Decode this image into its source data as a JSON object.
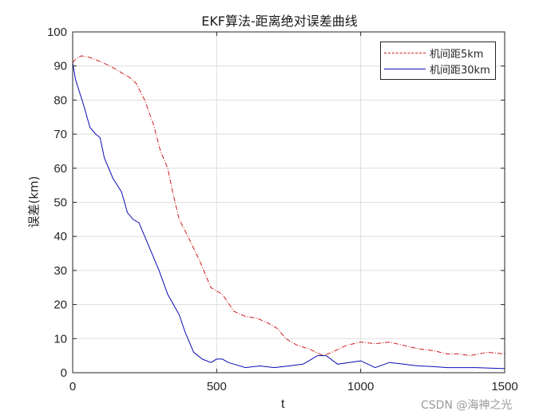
{
  "chart_data": {
    "type": "line",
    "title": "EKF算法-距离绝对误差曲线",
    "xlabel": "t",
    "ylabel": "误差(km)",
    "xlim": [
      0,
      1500
    ],
    "ylim": [
      0,
      100
    ],
    "xticks": [
      0,
      500,
      1000,
      1500
    ],
    "yticks": [
      0,
      10,
      20,
      30,
      40,
      50,
      60,
      70,
      80,
      90,
      100
    ],
    "grid": true,
    "legend_position": "upper right",
    "series": [
      {
        "name": "机间距5km",
        "color": "#d01c1c",
        "style": "dash-dot",
        "x": [
          0,
          10,
          30,
          60,
          90,
          130,
          170,
          200,
          220,
          250,
          280,
          305,
          330,
          350,
          370,
          400,
          440,
          480,
          520,
          560,
          600,
          640,
          680,
          710,
          740,
          780,
          820,
          870,
          900,
          950,
          1000,
          1050,
          1100,
          1150,
          1200,
          1250,
          1300,
          1340,
          1380,
          1440,
          1500
        ],
        "y": [
          91,
          92,
          93,
          92.5,
          91.5,
          90,
          88,
          86.5,
          85,
          80,
          73,
          65,
          60,
          52,
          45,
          40,
          33,
          25,
          23,
          18,
          16.5,
          16,
          14.5,
          13,
          10,
          8,
          7,
          5,
          6,
          8,
          9,
          8.5,
          9,
          8,
          7,
          6.5,
          5.5,
          5.5,
          5,
          6,
          5.5
        ]
      },
      {
        "name": "机间距30km",
        "color": "#0a0ab4",
        "style": "solid",
        "x": [
          0,
          0,
          10,
          25,
          40,
          60,
          80,
          95,
          110,
          140,
          170,
          190,
          210,
          230,
          260,
          300,
          330,
          370,
          390,
          420,
          450,
          480,
          500,
          520,
          540,
          560,
          600,
          650,
          700,
          750,
          800,
          830,
          850,
          880,
          920,
          960,
          1000,
          1050,
          1100,
          1150,
          1200,
          1250,
          1300,
          1400,
          1500
        ],
        "y": [
          0,
          91,
          86,
          82,
          78,
          72,
          70,
          69,
          63,
          57,
          53,
          47,
          45,
          44,
          38,
          30,
          23,
          17,
          12,
          6,
          4,
          3,
          4,
          4,
          3,
          2.5,
          1.5,
          2,
          1.5,
          2,
          2.5,
          4,
          5,
          5,
          2.5,
          3,
          3.5,
          1.5,
          3,
          2.5,
          2,
          1.8,
          1.5,
          1.5,
          1.2
        ]
      }
    ]
  },
  "figure": {
    "title": "EKF算法-距离绝对误差曲线",
    "xlabel": "t",
    "ylabel": "误差(km)",
    "legend": [
      {
        "label": "机间距5km"
      },
      {
        "label": "机间距30km"
      }
    ],
    "watermark": "CSDN @海神之光"
  }
}
